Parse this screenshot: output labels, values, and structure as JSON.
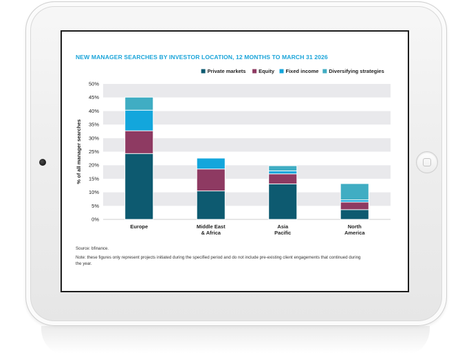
{
  "chart_data": {
    "type": "bar",
    "stacked": true,
    "title": "NEW MANAGER SEARCHES BY INVESTOR LOCATION, 12 MONTHS TO MARCH 31 2026",
    "ylabel": "% of all manager searches",
    "xlabel": "",
    "ylim": [
      0,
      50
    ],
    "yticks": [
      "0%",
      "5%",
      "10%",
      "15%",
      "20%",
      "25%",
      "30%",
      "35%",
      "40%",
      "45%",
      "50%"
    ],
    "categories": [
      [
        "Europe"
      ],
      [
        "Middle East",
        "& Africa"
      ],
      [
        "Asia",
        "Pacific"
      ],
      [
        "North",
        "America"
      ]
    ],
    "series": [
      {
        "name": "Private markets",
        "color": "#0d5a70",
        "values": [
          24.3,
          10.5,
          13.1,
          3.6
        ]
      },
      {
        "name": "Equity",
        "color": "#8e3a62",
        "values": [
          8.4,
          8.1,
          3.7,
          2.8
        ]
      },
      {
        "name": "Fixed income",
        "color": "#13a6dc",
        "values": [
          7.6,
          4.0,
          1.1,
          0.8
        ]
      },
      {
        "name": "Diversifying strategies",
        "color": "#40adc3",
        "values": [
          4.8,
          0.0,
          1.9,
          6.0
        ]
      }
    ],
    "legend_position": "top-right",
    "grid": "alternating horizontal bands"
  },
  "source": "Source: bfinance.",
  "note": "Note: these figures only represent projects initiated during the specified period and do not include pre-existing client engagements that continued during the year."
}
